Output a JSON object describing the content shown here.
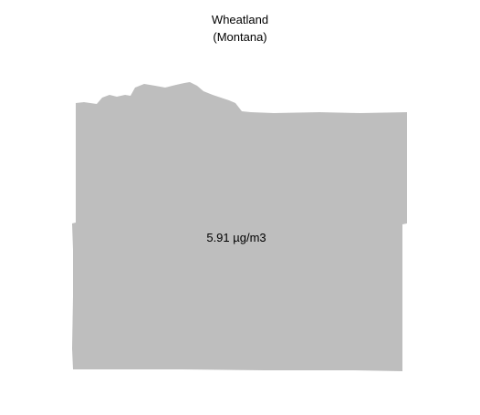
{
  "map": {
    "title": "Wheatland",
    "subtitle": "(Montana)",
    "region_fill": "#bebebe",
    "region": {
      "name": "Wheatland",
      "value_label": "5.91 µg/m3"
    }
  }
}
